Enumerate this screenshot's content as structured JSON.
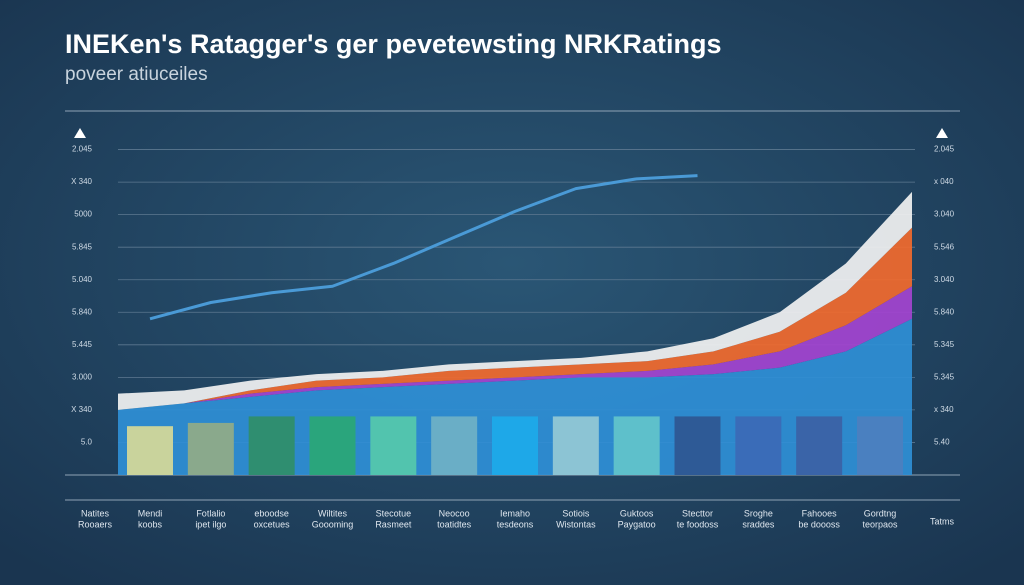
{
  "chart_data": {
    "type": "bar",
    "title": "INEKen's Ratagger's ger pevetewsting NRKRatings",
    "subtitle": "poveer atiuceiles",
    "y_caption": [
      "Natites",
      "Rooaers"
    ],
    "x_label": "Tatms",
    "categories": [
      [
        "Mendi",
        "koobs"
      ],
      [
        "Fotlalio",
        "ipet ilgo"
      ],
      [
        "eboodse",
        "oxcetues"
      ],
      [
        "Wiltites",
        "Goooming"
      ],
      [
        "Stecotue",
        "Rasmeet"
      ],
      [
        "Neocoo",
        "toatidtes"
      ],
      [
        "Iemaho",
        "tesdeons"
      ],
      [
        "Sotiois",
        "Wistontas"
      ],
      [
        "Guktoos",
        "Paygatoo"
      ],
      [
        "Stecttor",
        "te foodoss"
      ],
      [
        "Sroghe",
        "sraddes"
      ],
      [
        "Fahooes",
        "be doooss"
      ],
      [
        "Gordtng",
        "teorpaos"
      ]
    ],
    "bars": {
      "values": [
        1.5,
        1.6,
        1.8,
        1.8,
        1.8,
        1.8,
        1.8,
        1.8,
        1.8,
        1.8,
        1.8,
        1.8,
        1.8
      ],
      "colors": [
        "#c9d39c",
        "#8aa98c",
        "#2f8e70",
        "#2aa57c",
        "#52c4ae",
        "#6aaec6",
        "#1ea8e8",
        "#8cc4d4",
        "#5ec0cb",
        "#2e5a96",
        "#3a6cb8",
        "#3a64a8",
        "#4a80c0"
      ]
    },
    "line": {
      "color": "#4a9ad6",
      "values": [
        4.8,
        5.3,
        5.6,
        5.8,
        6.5,
        7.3,
        8.1,
        8.8,
        9.1,
        9.2,
        null,
        null,
        null
      ]
    },
    "areas": [
      {
        "color": "#2f8fd6",
        "values": [
          2.0,
          2.2,
          2.4,
          2.6,
          2.7,
          2.8,
          2.9,
          3.0,
          3.0,
          3.1,
          3.3,
          3.8,
          4.8
        ]
      },
      {
        "color": "#a444d0",
        "values": [
          0,
          0,
          0.1,
          0.1,
          0.1,
          0.1,
          0.1,
          0.1,
          0.2,
          0.3,
          0.5,
          0.8,
          1.0
        ]
      },
      {
        "color": "#f26a2e",
        "values": [
          0,
          0,
          0.1,
          0.2,
          0.2,
          0.3,
          0.3,
          0.3,
          0.3,
          0.4,
          0.6,
          1.0,
          1.8
        ]
      },
      {
        "color": "#f2f2f2",
        "values": [
          0.5,
          0.4,
          0.3,
          0.2,
          0.2,
          0.2,
          0.2,
          0.2,
          0.3,
          0.4,
          0.6,
          0.9,
          1.1
        ]
      }
    ],
    "ylim": [
      0,
      11
    ],
    "yticks": [
      {
        "value": 1,
        "label": "5.0"
      },
      {
        "value": 2,
        "label": "X 340"
      },
      {
        "value": 3,
        "label": "3.000"
      },
      {
        "value": 4,
        "label": "5.445"
      },
      {
        "value": 5,
        "label": "5.840"
      },
      {
        "value": 6,
        "label": "5.040"
      },
      {
        "value": 7,
        "label": "5.845"
      },
      {
        "value": 8,
        "label": "5000"
      },
      {
        "value": 9,
        "label": "X 340"
      },
      {
        "value": 10,
        "label": "2.045"
      }
    ],
    "y2ticks": [
      {
        "value": 1,
        "label": "5.40"
      },
      {
        "value": 2,
        "label": "x 340"
      },
      {
        "value": 3,
        "label": "5.345"
      },
      {
        "value": 4,
        "label": "5.345"
      },
      {
        "value": 5,
        "label": "5.840"
      },
      {
        "value": 6,
        "label": "3.040"
      },
      {
        "value": 7,
        "label": "5.546"
      },
      {
        "value": 8,
        "label": "3.040"
      },
      {
        "value": 9,
        "label": "x 040"
      },
      {
        "value": 10,
        "label": "2.045"
      }
    ],
    "grid": true
  }
}
